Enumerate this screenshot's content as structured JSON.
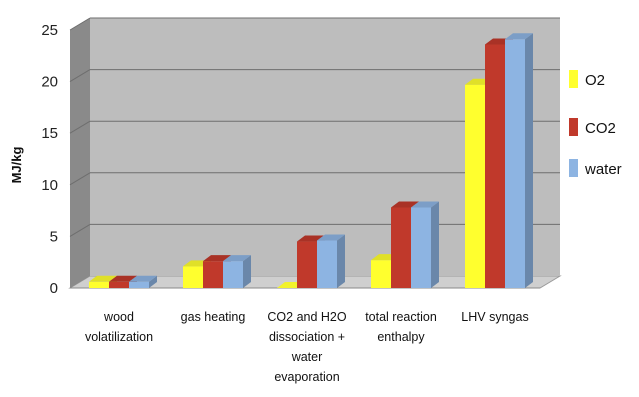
{
  "chart_data": {
    "type": "bar",
    "style": "3d-clustered",
    "ylabel": "MJ/kg",
    "ylim": [
      0,
      25
    ],
    "yticks": [
      0,
      5,
      10,
      15,
      20,
      25
    ],
    "grid": true,
    "legend_position": "right",
    "categories": [
      [
        "wood",
        "volatilization"
      ],
      [
        "gas heating"
      ],
      [
        "CO2  and H2O",
        "dissociation +",
        "water",
        "evaporation"
      ],
      [
        "total reaction",
        "enthalpy"
      ],
      [
        "LHV syngas"
      ]
    ],
    "series": [
      {
        "name": "O2",
        "values": [
          0.6,
          2.1,
          0.0,
          2.7,
          19.7
        ],
        "color": "#ffff2e"
      },
      {
        "name": "CO2",
        "values": [
          0.6,
          2.6,
          4.5,
          7.8,
          23.6
        ],
        "color": "#c0392b"
      },
      {
        "name": "water",
        "values": [
          0.6,
          2.6,
          4.6,
          7.8,
          24.1
        ],
        "color": "#8db4e2"
      }
    ]
  }
}
